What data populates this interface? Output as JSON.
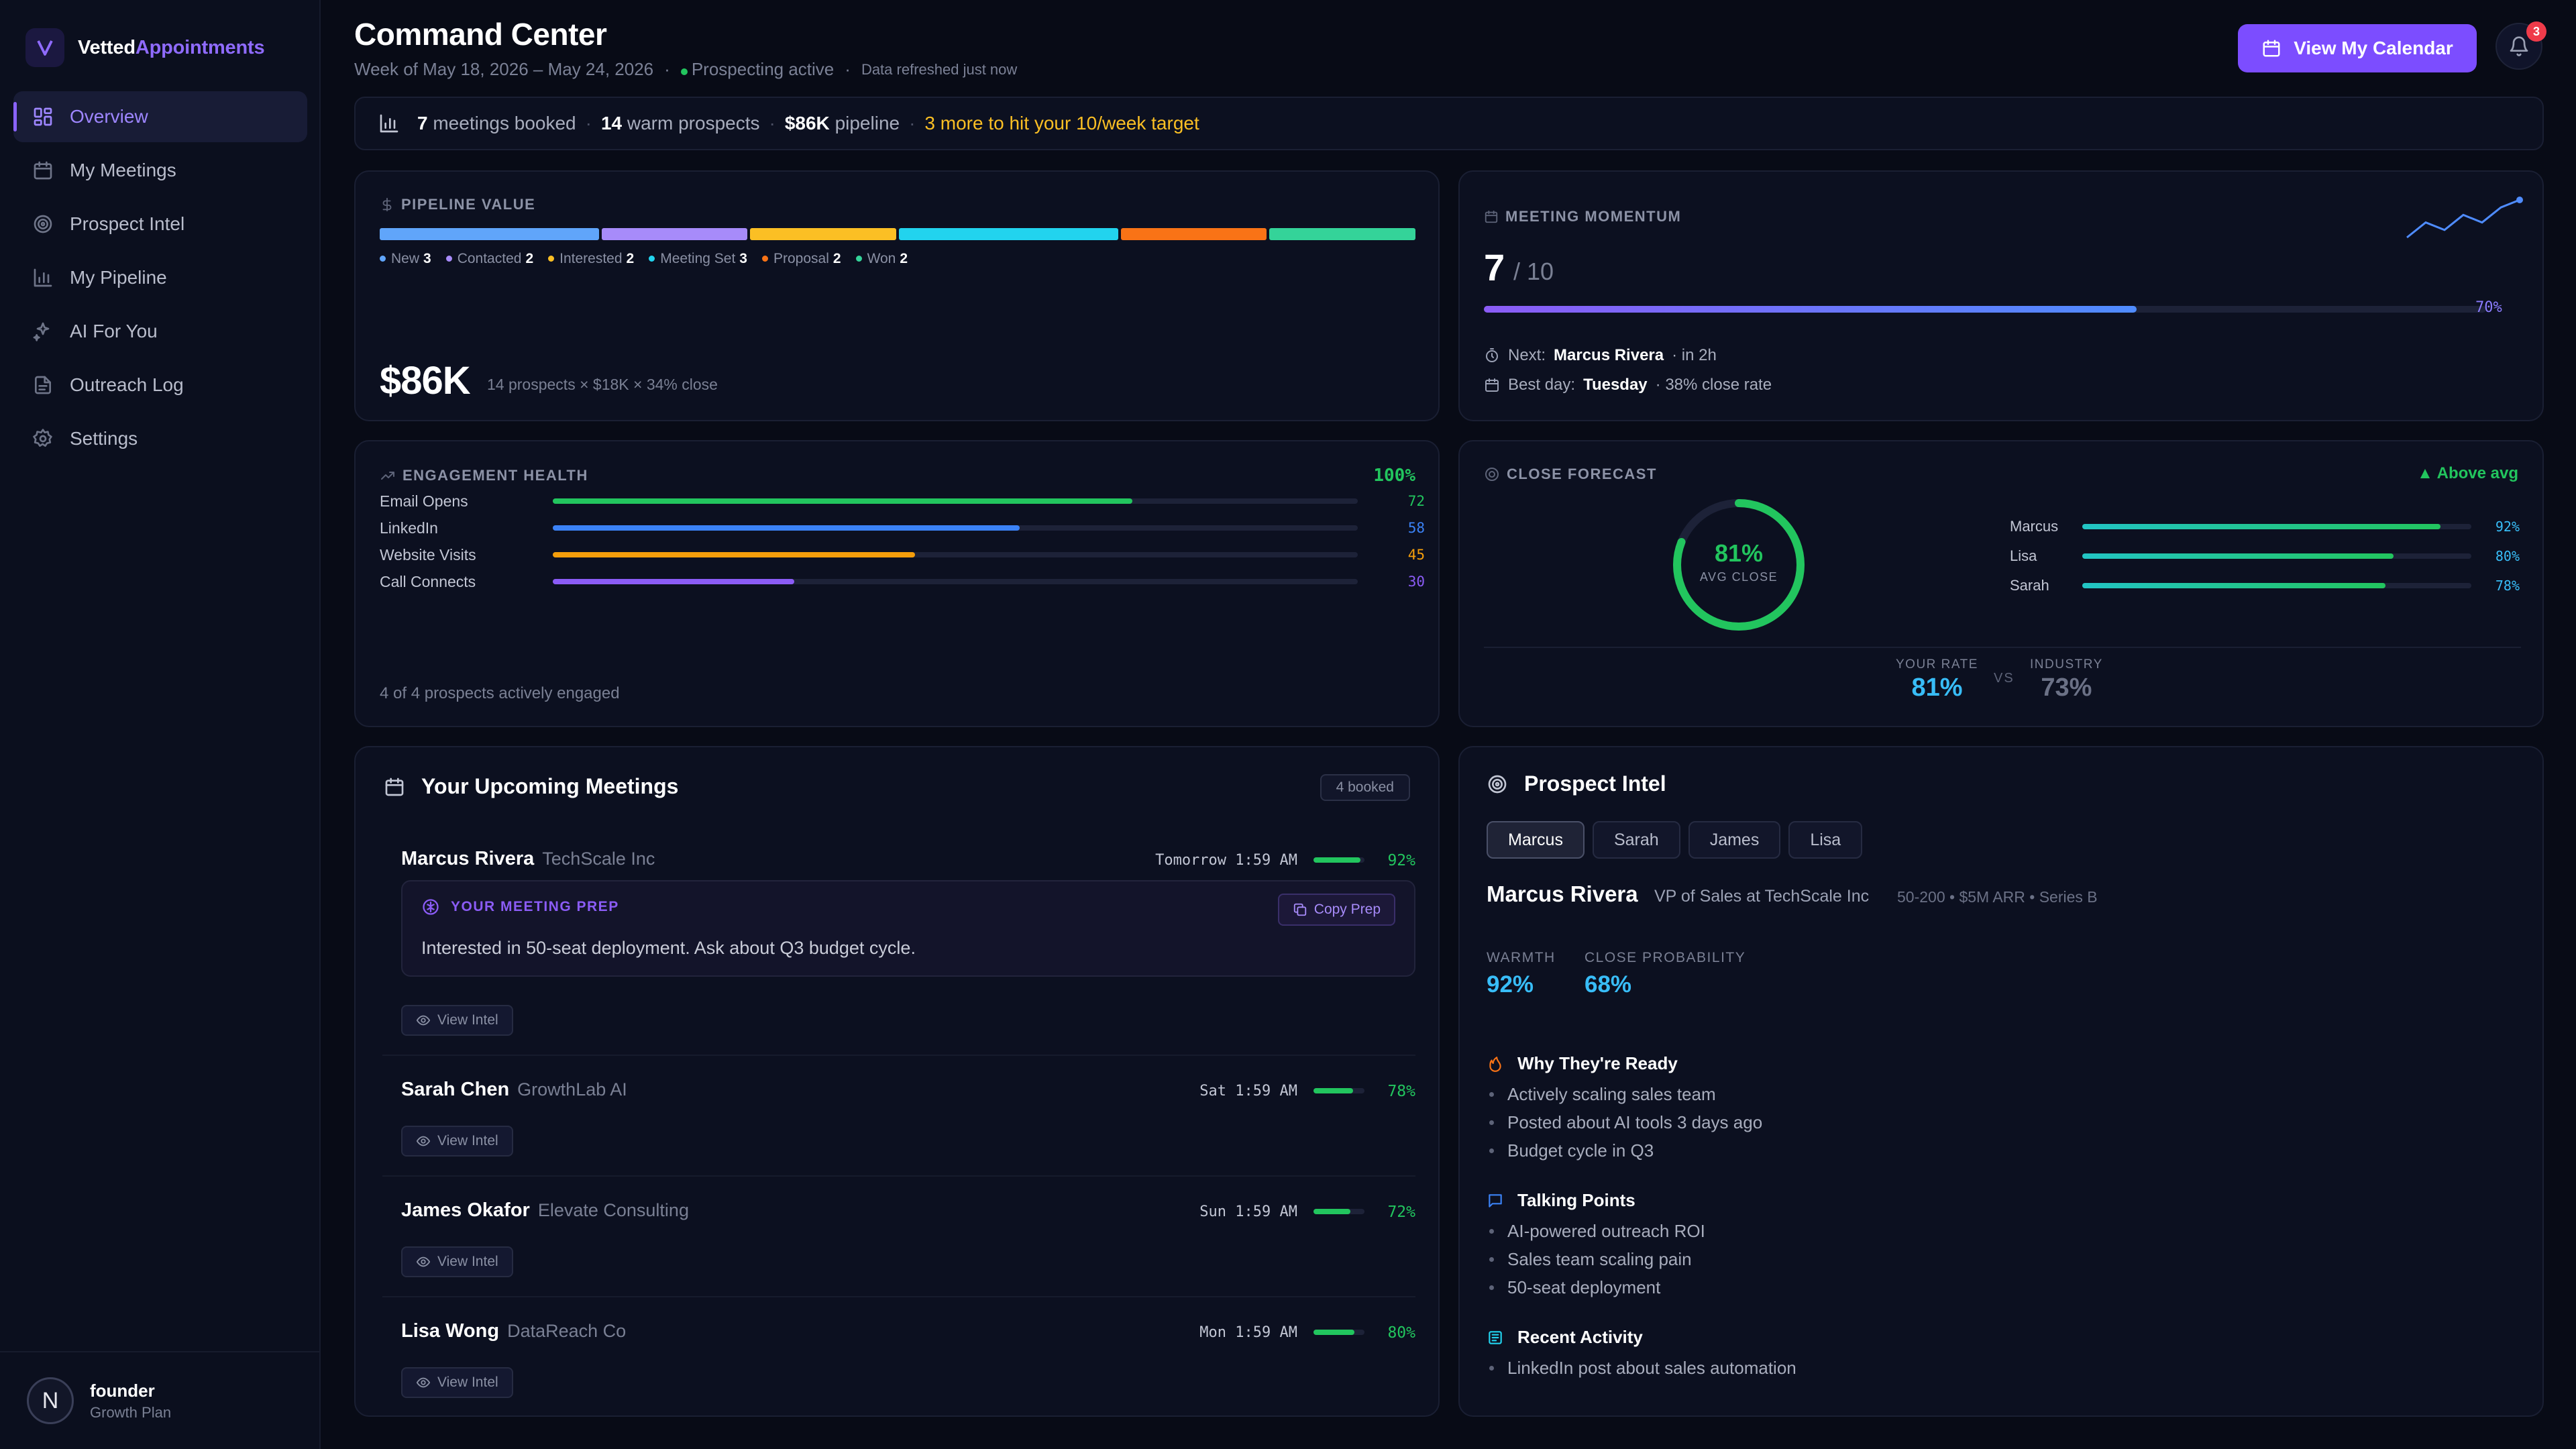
{
  "brand": {
    "name_part1": "Vetted",
    "name_part2": "Appointments"
  },
  "nav": [
    {
      "label": "Overview",
      "icon": "grid-icon",
      "active": true
    },
    {
      "label": "My Meetings",
      "icon": "calendar-icon"
    },
    {
      "label": "Prospect Intel",
      "icon": "target-icon"
    },
    {
      "label": "My Pipeline",
      "icon": "bar-chart-icon"
    },
    {
      "label": "AI For You",
      "icon": "sparkles-icon"
    },
    {
      "label": "Outreach Log",
      "icon": "document-icon"
    },
    {
      "label": "Settings",
      "icon": "gear-icon"
    }
  ],
  "user": {
    "initial": "N",
    "name": "founder",
    "plan": "Growth Plan"
  },
  "header": {
    "title": "Command Center",
    "week": "Week of May 18, 2026 – May 24, 2026",
    "status": "Prospecting active",
    "refreshed": "Data refreshed just now",
    "calendar_button": "View My Calendar",
    "notifications": "3"
  },
  "summary": {
    "meetings_num": "7",
    "meetings_text": "meetings booked",
    "prospects_num": "14",
    "prospects_text": "warm prospects",
    "pipeline_num": "$86K",
    "pipeline_text": "pipeline",
    "target_text": "3 more to hit your 10/week target"
  },
  "pipeline": {
    "label": "PIPELINE VALUE",
    "stages": [
      {
        "name": "New",
        "count": 3,
        "color": "#60a5fa"
      },
      {
        "name": "Contacted",
        "count": 2,
        "color": "#a78bfa"
      },
      {
        "name": "Interested",
        "count": 2,
        "color": "#fbbf24"
      },
      {
        "name": "Meeting Set",
        "count": 3,
        "color": "#22d3ee"
      },
      {
        "name": "Proposal",
        "count": 2,
        "color": "#f97316"
      },
      {
        "name": "Won",
        "count": 2,
        "color": "#34d399"
      }
    ],
    "total": "$86K",
    "formula": "14 prospects × $18K × 34% close"
  },
  "momentum": {
    "label": "MEETING MOMENTUM",
    "value": "7",
    "of": "/ 10",
    "progress": 0.7,
    "progress_text": "70%",
    "next_label": "Next:",
    "next_name": "Marcus Rivera",
    "next_when": "· in 2h",
    "best_label": "Best day:",
    "best_day": "Tuesday",
    "best_rate": "· 38% close rate",
    "sparkline": [
      1,
      3,
      2,
      4,
      3,
      5,
      6
    ]
  },
  "engagement": {
    "label": "ENGAGEMENT HEALTH",
    "total": "100%",
    "rows": [
      {
        "name": "Email Opens",
        "value": 72,
        "color": "#22c55e"
      },
      {
        "name": "LinkedIn",
        "value": 58,
        "color": "#3b82f6"
      },
      {
        "name": "Website Visits",
        "value": 45,
        "color": "#f59e0b"
      },
      {
        "name": "Call Connects",
        "value": 30,
        "color": "#8b5cf6"
      }
    ],
    "footer": "4 of 4 prospects actively engaged"
  },
  "forecast": {
    "label": "CLOSE FORECAST",
    "badge": "▲ Above avg",
    "avg_pct": "81%",
    "avg_value": 0.81,
    "avg_label": "AVG CLOSE",
    "reps": [
      {
        "name": "Marcus",
        "value": 92,
        "text": "92%"
      },
      {
        "name": "Lisa",
        "value": 80,
        "text": "80%"
      },
      {
        "name": "Sarah",
        "value": 78,
        "text": "78%"
      }
    ],
    "your_rate_label": "YOUR RATE",
    "your_rate": "81%",
    "vs": "VS",
    "industry_label": "INDUSTRY",
    "industry": "73%"
  },
  "meetings": {
    "title": "Your Upcoming Meetings",
    "badge": "4 booked",
    "view_intel": "View Intel",
    "items": [
      {
        "name": "Marcus Rivera",
        "company": "TechScale Inc",
        "time": "Tomorrow 1:59 AM",
        "score": 92,
        "score_text": "92%"
      },
      {
        "name": "Sarah Chen",
        "company": "GrowthLab AI",
        "time": "Sat 1:59 AM",
        "score": 78,
        "score_text": "78%"
      },
      {
        "name": "James Okafor",
        "company": "Elevate Consulting",
        "time": "Sun 1:59 AM",
        "score": 72,
        "score_text": "72%"
      },
      {
        "name": "Lisa Wong",
        "company": "DataReach Co",
        "time": "Mon 1:59 AM",
        "score": 80,
        "score_text": "80%"
      }
    ],
    "prep": {
      "title": "YOUR MEETING PREP",
      "copy": "Copy Prep",
      "text": "Interested in 50-seat deployment. Ask about Q3 budget cycle."
    }
  },
  "intel": {
    "title": "Prospect Intel",
    "tabs": [
      "Marcus",
      "Sarah",
      "James",
      "Lisa"
    ],
    "active_tab": 0,
    "name": "Marcus Rivera",
    "role": "VP of Sales at TechScale Inc",
    "meta": "50-200 • $5M ARR • Series B",
    "warmth_label": "WARMTH",
    "warmth": "92%",
    "close_label": "CLOSE PROBABILITY",
    "close": "68%",
    "why_title": "Why They're Ready",
    "why": [
      "Actively scaling sales team",
      "Posted about AI tools 3 days ago",
      "Budget cycle in Q3"
    ],
    "talk_title": "Talking Points",
    "talk": [
      "AI-powered outreach ROI",
      "Sales team scaling pain",
      "50-seat deployment"
    ],
    "activity_title": "Recent Activity",
    "activity": [
      "LinkedIn post about sales automation"
    ]
  }
}
